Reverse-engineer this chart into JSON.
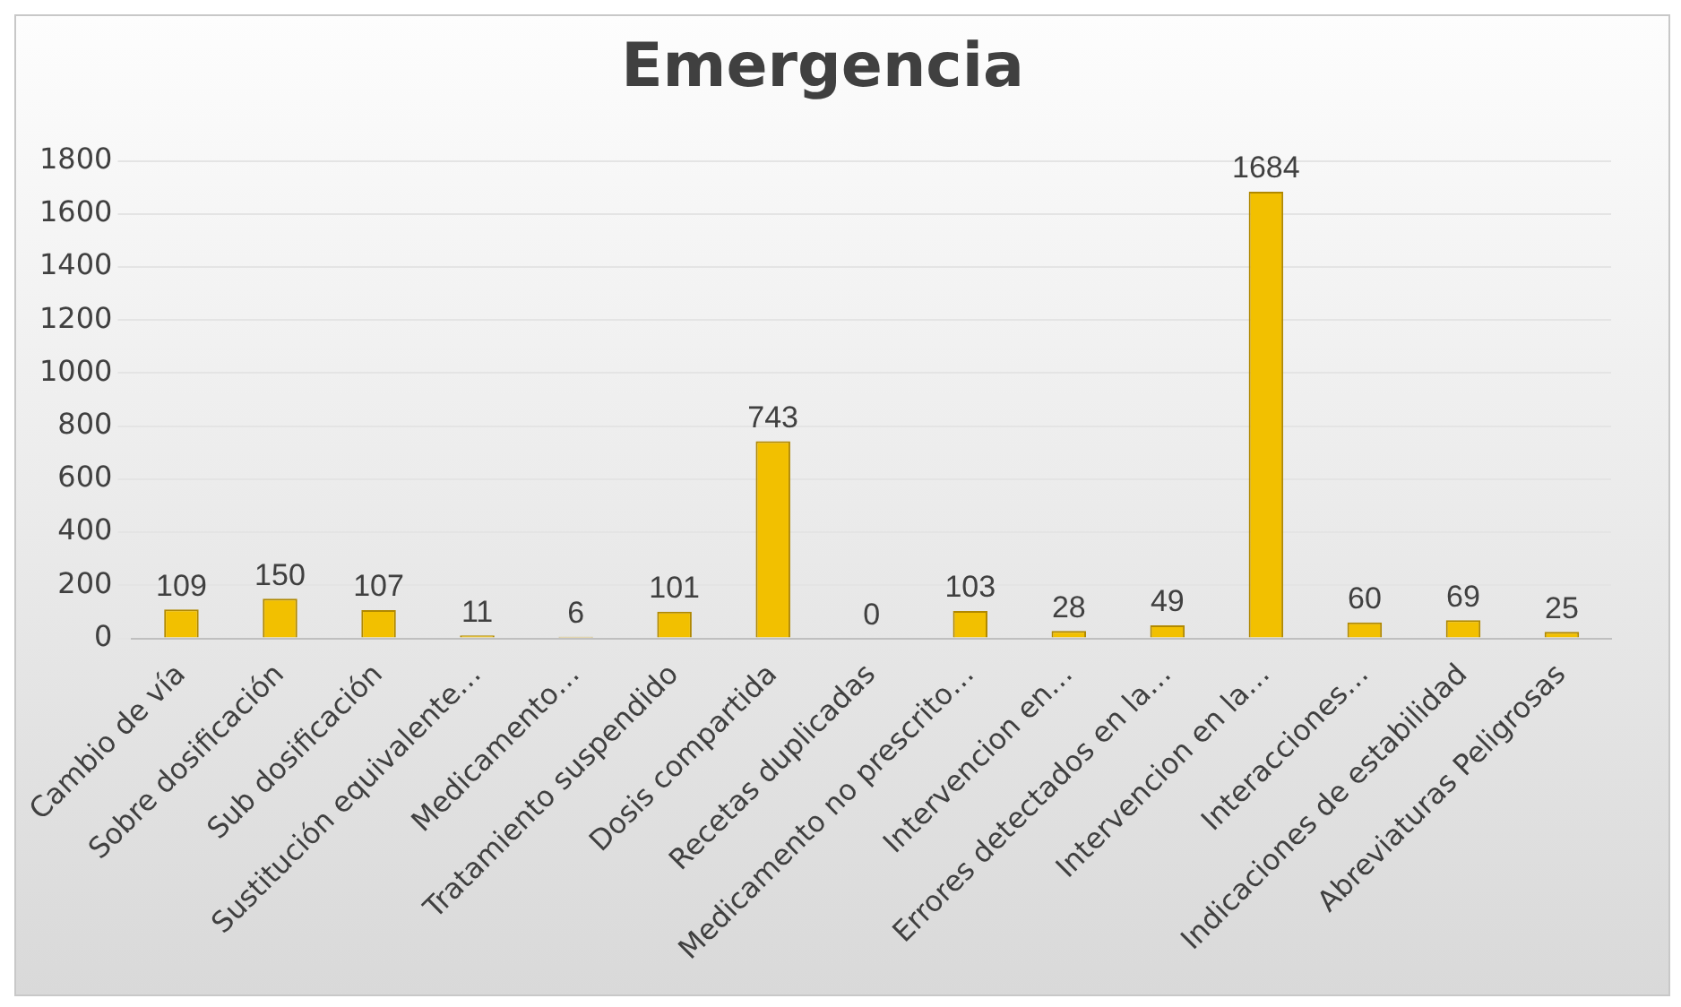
{
  "chart_data": {
    "type": "bar",
    "title": "Emergencia",
    "categories": [
      "Cambio de vía",
      "Sobre dosificación",
      "Sub dosificación",
      "Sustitución equivalente…",
      "Medicamento…",
      "Tratamiento suspendido",
      "Dosis compartida",
      "Recetas duplicadas",
      "Medicamento no prescrito…",
      "Intervencion en…",
      "Errores detectados en la…",
      "Intervencion en la…",
      "Interacciones…",
      "Indicaciones de estabilidad",
      "Abreviaturas Peligrosas"
    ],
    "values": [
      109,
      150,
      107,
      11,
      6,
      101,
      743,
      0,
      103,
      28,
      49,
      1684,
      60,
      69,
      25
    ],
    "color": "#f2c000",
    "ylim": [
      0,
      1800
    ],
    "yticks": [
      0,
      200,
      400,
      600,
      800,
      1000,
      1200,
      1400,
      1600,
      1800
    ],
    "grid": "y",
    "data_labels": true
  }
}
